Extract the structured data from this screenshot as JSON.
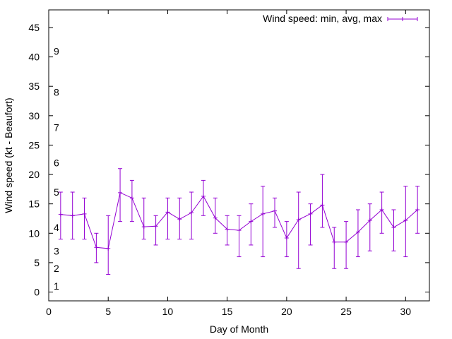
{
  "chart_data": {
    "type": "line",
    "title": "",
    "xlabel": "Day of Month",
    "ylabel": "Wind speed (kt - Beaufort)",
    "xlim": [
      0,
      32
    ],
    "ylim": [
      -1.5,
      48
    ],
    "x_ticks": [
      0,
      5,
      10,
      15,
      20,
      25,
      30
    ],
    "y_ticks": [
      0,
      5,
      10,
      15,
      20,
      25,
      30,
      35,
      40,
      45
    ],
    "beaufort_labels": [
      {
        "text": "1",
        "y": 1
      },
      {
        "text": "2",
        "y": 4
      },
      {
        "text": "3",
        "y": 7
      },
      {
        "text": "4",
        "y": 11
      },
      {
        "text": "5",
        "y": 17
      },
      {
        "text": "6",
        "y": 22
      },
      {
        "text": "7",
        "y": 28
      },
      {
        "text": "8",
        "y": 34
      },
      {
        "text": "9",
        "y": 41
      }
    ],
    "legend": {
      "position": "top-right"
    },
    "grid": false,
    "series": [
      {
        "name": "Wind speed: min, avg, max",
        "color": "#9400d3",
        "x": [
          1,
          2,
          3,
          4,
          5,
          6,
          7,
          8,
          9,
          10,
          11,
          12,
          13,
          14,
          15,
          16,
          17,
          18,
          19,
          20,
          21,
          22,
          23,
          24,
          25,
          26,
          27,
          28,
          29,
          30,
          31
        ],
        "avg": [
          13.2,
          13.0,
          13.3,
          7.6,
          7.4,
          16.9,
          16.0,
          11.1,
          11.2,
          13.6,
          12.4,
          13.5,
          16.3,
          12.6,
          10.7,
          10.5,
          12.0,
          13.3,
          13.8,
          9.2,
          12.3,
          13.3,
          14.8,
          8.5,
          8.5,
          10.2,
          12.2,
          14.0,
          11.0,
          12.2,
          14.0
        ],
        "min": [
          9,
          9,
          9,
          5,
          3,
          12,
          12,
          9,
          8,
          9,
          9,
          9,
          13,
          10,
          8,
          6,
          8,
          6,
          11,
          6,
          4,
          8,
          11,
          4,
          4,
          6,
          7,
          10,
          7,
          6,
          10
        ],
        "max": [
          17,
          17,
          16,
          10,
          13,
          21,
          19,
          16,
          13,
          16,
          16,
          17,
          19,
          16,
          13,
          13,
          15,
          18,
          16,
          12,
          17,
          15,
          20,
          11,
          12,
          14,
          15,
          17,
          14,
          18,
          18
        ]
      }
    ]
  }
}
